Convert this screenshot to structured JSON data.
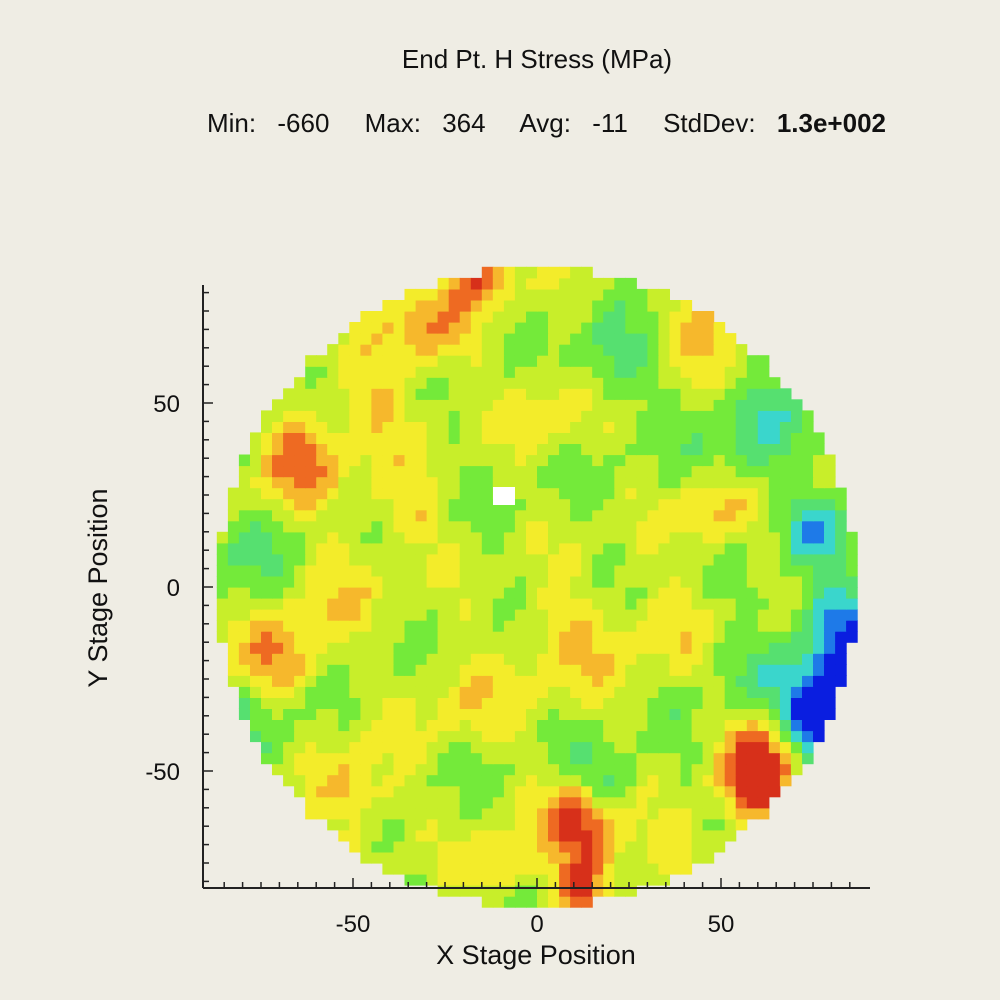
{
  "chart_data": {
    "type": "heatmap",
    "title": "End Pt. H Stress (MPa)",
    "stats": {
      "min_label": "Min:",
      "min": "-660",
      "max_label": "Max:",
      "max": "364",
      "avg_label": "Avg:",
      "avg": "-11",
      "std_label": "StdDev:",
      "std": "1.3e+002"
    },
    "xlabel": "X Stage Position",
    "ylabel": "Y Stage Position",
    "xlim": [
      -90,
      90
    ],
    "ylim": [
      -90,
      90
    ],
    "x_ticks": [
      -50,
      0,
      50
    ],
    "y_ticks": [
      50,
      0,
      -50
    ],
    "wafer_radius": 87,
    "color_scale": [
      "#0a1ee0",
      "#1e7ae8",
      "#3ad6cc",
      "#56e070",
      "#74ea3a",
      "#c8ee2a",
      "#f3ec2a",
      "#f6b82c",
      "#ee6a22",
      "#d7301a"
    ],
    "features": [
      {
        "x": 80,
        "y": -30,
        "v": -1.0,
        "r": 9
      },
      {
        "x": 82,
        "y": -10,
        "v": -0.85,
        "r": 8
      },
      {
        "x": 75,
        "y": 15,
        "v": -0.6,
        "r": 6
      },
      {
        "x": 78,
        "y": -40,
        "v": -0.9,
        "r": 8
      },
      {
        "x": 60,
        "y": 40,
        "v": -0.4,
        "r": 10
      },
      {
        "x": 20,
        "y": 60,
        "v": -0.4,
        "r": 8
      },
      {
        "x": 18,
        "y": -55,
        "v": -0.45,
        "r": 7
      },
      {
        "x": -80,
        "y": 10,
        "v": -0.3,
        "r": 8
      },
      {
        "x": -75,
        "y": -40,
        "v": -0.3,
        "r": 9
      },
      {
        "x": 55,
        "y": -20,
        "v": -0.25,
        "r": 8
      },
      {
        "x": 62,
        "y": -45,
        "v": 0.9,
        "r": 7
      },
      {
        "x": 60,
        "y": -55,
        "v": 0.85,
        "r": 6
      },
      {
        "x": 15,
        "y": -70,
        "v": 0.8,
        "r": 7
      },
      {
        "x": 10,
        "y": -60,
        "v": 0.75,
        "r": 6
      },
      {
        "x": 12,
        "y": -82,
        "v": 0.8,
        "r": 5
      },
      {
        "x": -65,
        "y": 35,
        "v": 0.7,
        "r": 8
      },
      {
        "x": -70,
        "y": -20,
        "v": 0.6,
        "r": 8
      },
      {
        "x": -50,
        "y": -55,
        "v": 0.5,
        "r": 8
      },
      {
        "x": -30,
        "y": 70,
        "v": 0.6,
        "r": 8
      },
      {
        "x": -15,
        "y": 84,
        "v": 0.7,
        "r": 6
      },
      {
        "x": 45,
        "y": 70,
        "v": 0.5,
        "r": 7
      },
      {
        "x": 48,
        "y": 20,
        "v": 0.45,
        "r": 7
      },
      {
        "x": 8,
        "y": -15,
        "v": 0.4,
        "r": 10
      },
      {
        "x": -45,
        "y": 50,
        "v": 0.4,
        "r": 9
      },
      {
        "x": -35,
        "y": 20,
        "v": 0.35,
        "r": 8
      },
      {
        "x": -20,
        "y": -30,
        "v": 0.3,
        "r": 9
      },
      {
        "x": 35,
        "y": -10,
        "v": 0.3,
        "r": 9
      },
      {
        "x": 5,
        "y": 50,
        "v": 0.3,
        "r": 8
      },
      {
        "x": -55,
        "y": 0,
        "v": 0.3,
        "r": 9
      },
      {
        "x": -10,
        "y": -75,
        "v": 0.4,
        "r": 7
      },
      {
        "x": 40,
        "y": -70,
        "v": 0.35,
        "r": 7
      }
    ]
  }
}
